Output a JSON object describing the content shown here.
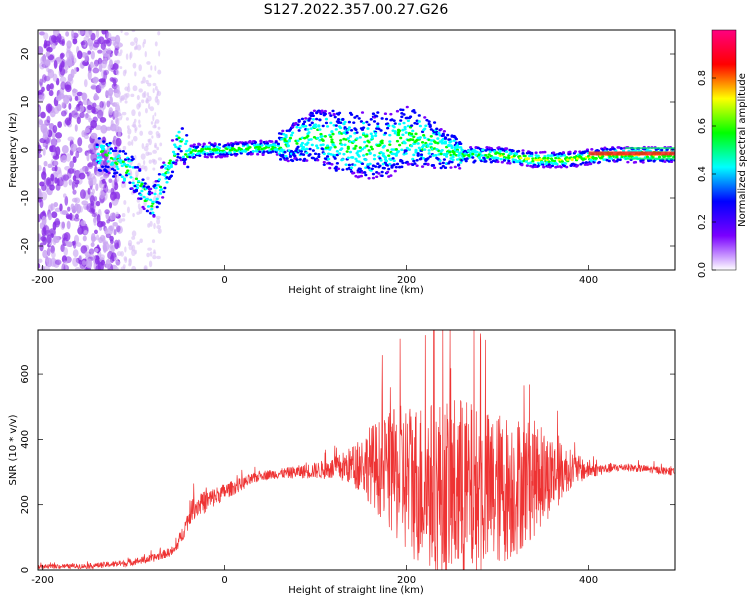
{
  "figure_title": "S127.2022.357.00.27.G26",
  "chart_data": [
    {
      "type": "heatmap",
      "xlabel": "Height of straight line (km)",
      "ylabel": "Frequency (Hz)",
      "xlim": [
        -205,
        495
      ],
      "ylim": [
        -25,
        25
      ],
      "xticks": [
        -200,
        0,
        200,
        400
      ],
      "yticks": [
        -20,
        -10,
        0,
        10,
        20
      ],
      "colorbar": {
        "label": "Normalized spectral amplitude",
        "range": [
          0,
          1
        ],
        "ticks": [
          0.0,
          0.2,
          0.4,
          0.6,
          0.8
        ],
        "colors": [
          "#ffffff",
          "#7a00ff",
          "#0000ff",
          "#00ffff",
          "#00ff00",
          "#ffff00",
          "#ff0000",
          "#ff0080"
        ]
      },
      "ridge": {
        "description_points": [
          [
            -130,
            -1
          ],
          [
            -100,
            -5
          ],
          [
            -80,
            -12
          ],
          [
            -65,
            -5
          ],
          [
            -50,
            2
          ],
          [
            -40,
            -0.5
          ],
          [
            -20,
            0
          ],
          [
            0,
            0
          ],
          [
            40,
            0.5
          ],
          [
            60,
            0.5
          ],
          [
            80,
            2
          ],
          [
            100,
            3
          ],
          [
            140,
            1
          ],
          [
            180,
            1
          ],
          [
            200,
            3
          ],
          [
            230,
            1
          ],
          [
            260,
            -1
          ],
          [
            300,
            -1
          ],
          [
            340,
            -2
          ],
          [
            380,
            -2
          ],
          [
            420,
            -1
          ],
          [
            495,
            -1
          ]
        ]
      }
    },
    {
      "type": "line",
      "xlabel": "Height of straight line (km)",
      "ylabel": "SNR (10 * v/v)",
      "xlim": [
        -205,
        495
      ],
      "ylim": [
        0,
        735
      ],
      "xticks": [
        -200,
        0,
        200,
        400
      ],
      "yticks": [
        0,
        200,
        400,
        600
      ],
      "color": "#ee3333",
      "envelope": {
        "x": [
          -205,
          -150,
          -110,
          -80,
          -55,
          -45,
          -35,
          -20,
          0,
          20,
          40,
          60,
          80,
          100,
          120,
          140,
          160,
          180,
          200,
          220,
          240,
          260,
          280,
          300,
          320,
          340,
          360,
          380,
          400,
          420,
          440,
          460,
          480,
          495
        ],
        "mean": [
          10,
          12,
          20,
          35,
          60,
          120,
          190,
          210,
          240,
          265,
          290,
          295,
          300,
          305,
          310,
          320,
          325,
          300,
          280,
          260,
          250,
          240,
          235,
          245,
          260,
          280,
          290,
          310,
          305,
          310,
          315,
          310,
          305,
          300
        ],
        "noise": [
          6,
          8,
          10,
          12,
          15,
          25,
          35,
          35,
          25,
          20,
          15,
          15,
          20,
          25,
          35,
          60,
          120,
          180,
          240,
          260,
          280,
          300,
          260,
          240,
          220,
          180,
          120,
          60,
          25,
          15,
          12,
          12,
          12,
          12
        ]
      }
    }
  ]
}
